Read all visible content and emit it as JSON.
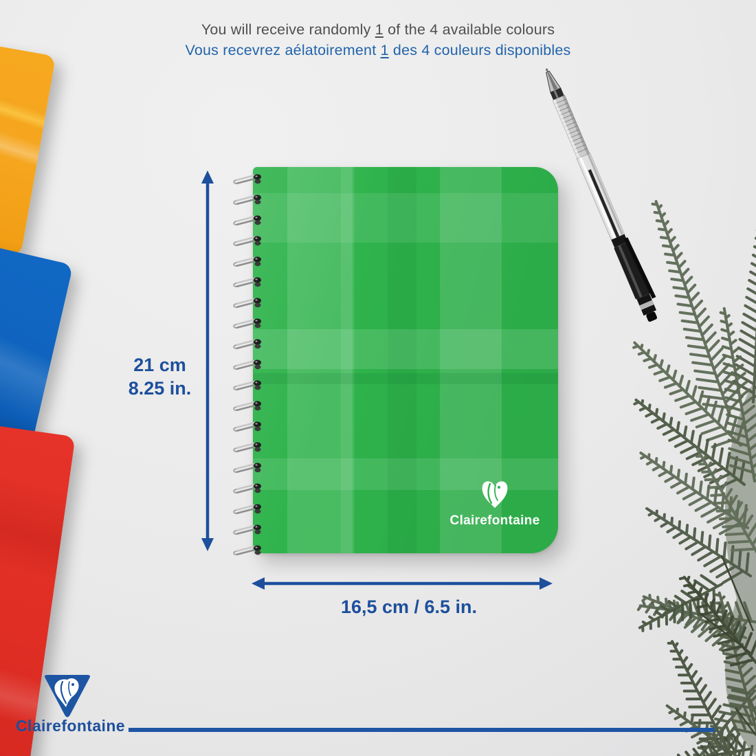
{
  "header": {
    "en": {
      "pre": "You will receive randomly ",
      "num": "1",
      "post": " of the 4 available colours"
    },
    "fr": {
      "pre": "Vous recevrez aélatoirement ",
      "num": "1",
      "post": " des 4 couleurs disponibles"
    }
  },
  "dimensions": {
    "height_cm": "21 cm",
    "height_in": "8.25 in.",
    "width": "16,5 cm / 6.5 in."
  },
  "brand": {
    "cover_logo_text": "Clairefontaine",
    "footer_logo_text": "Clairefontaine"
  },
  "available_colours": [
    "orange",
    "blue",
    "red",
    "green"
  ],
  "icons": {
    "cover_logo": "clairefontaine-heart-icon",
    "footer_logo": "clairefontaine-triangle-icon",
    "pen": "ballpoint-pen",
    "plant": "fern-plant",
    "binding": "spiral-binding",
    "arrows": "dimension-arrows"
  },
  "colors": {
    "accent-blue": "#1d4f9c",
    "french-blue": "#2264ab",
    "text-gray": "#4f4f4f",
    "footer-blue": "#1d55a3",
    "green-cover": "#2fb34c",
    "orange-cover": "#f5a51e",
    "blue-cover": "#0f63bd",
    "red-cover": "#e02e24"
  }
}
